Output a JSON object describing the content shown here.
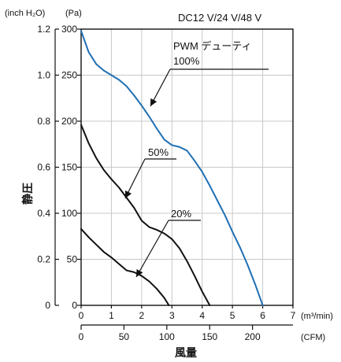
{
  "chart_data": {
    "type": "line",
    "title": "DC12 V/24 V/48 V",
    "xlabel": "風量",
    "ylabel": "静圧",
    "x_unit_primary": "(m³/min)",
    "x_unit_secondary": "(CFM)",
    "y_unit_primary": "(inch H₂O)",
    "y_unit_secondary": "(Pa)",
    "xlim": [
      0,
      7
    ],
    "ylim": [
      0,
      300
    ],
    "x_ticks_primary": [
      "0",
      "1",
      "2",
      "3",
      "4",
      "5",
      "6",
      "7"
    ],
    "x_ticks_secondary": [
      "0",
      "50",
      "100",
      "150",
      "200"
    ],
    "y_ticks_pa": [
      "0",
      "50",
      "100",
      "150",
      "200",
      "250",
      "300"
    ],
    "y_ticks_inch": [
      "0",
      "0.2",
      "0.4",
      "0.6",
      "0.8",
      "1.0",
      "1.2"
    ],
    "grid": true,
    "colors": {
      "series_100": "#1f6fb3",
      "series_other": "#111111",
      "grid": "#c8c8c8",
      "axis": "#111111"
    },
    "annotations": {
      "pwm_label": "PWM デューティ",
      "label_100": "100%",
      "label_50": "50%",
      "label_20": "20%"
    },
    "series": [
      {
        "label": "100%",
        "values": [
          [
            0,
            298
          ],
          [
            0.25,
            275
          ],
          [
            0.5,
            262
          ],
          [
            0.75,
            255
          ],
          [
            1.0,
            250
          ],
          [
            1.25,
            245
          ],
          [
            1.5,
            238
          ],
          [
            1.75,
            228
          ],
          [
            2.0,
            217
          ],
          [
            2.25,
            205
          ],
          [
            2.5,
            192
          ],
          [
            2.75,
            180
          ],
          [
            3.0,
            174
          ],
          [
            3.25,
            172
          ],
          [
            3.5,
            168
          ],
          [
            3.75,
            157
          ],
          [
            4.0,
            145
          ],
          [
            4.25,
            130
          ],
          [
            4.5,
            114
          ],
          [
            4.75,
            98
          ],
          [
            5.0,
            80
          ],
          [
            5.25,
            63
          ],
          [
            5.5,
            44
          ],
          [
            5.75,
            23
          ],
          [
            6.0,
            0
          ]
        ]
      },
      {
        "label": "50%",
        "values": [
          [
            0,
            196
          ],
          [
            0.25,
            176
          ],
          [
            0.5,
            160
          ],
          [
            0.75,
            147
          ],
          [
            1.0,
            137
          ],
          [
            1.25,
            128
          ],
          [
            1.5,
            117
          ],
          [
            1.75,
            106
          ],
          [
            2.0,
            92
          ],
          [
            2.25,
            85
          ],
          [
            2.5,
            82
          ],
          [
            2.75,
            78
          ],
          [
            3.0,
            72
          ],
          [
            3.25,
            62
          ],
          [
            3.5,
            48
          ],
          [
            3.75,
            32
          ],
          [
            4.0,
            15
          ],
          [
            4.25,
            0
          ]
        ]
      },
      {
        "label": "20%",
        "values": [
          [
            0,
            83
          ],
          [
            0.25,
            74
          ],
          [
            0.5,
            66
          ],
          [
            0.75,
            58
          ],
          [
            1.0,
            52
          ],
          [
            1.25,
            45
          ],
          [
            1.5,
            38
          ],
          [
            1.75,
            36
          ],
          [
            2.0,
            32
          ],
          [
            2.25,
            26
          ],
          [
            2.5,
            18
          ],
          [
            2.75,
            8
          ],
          [
            2.9,
            0
          ]
        ]
      }
    ]
  }
}
